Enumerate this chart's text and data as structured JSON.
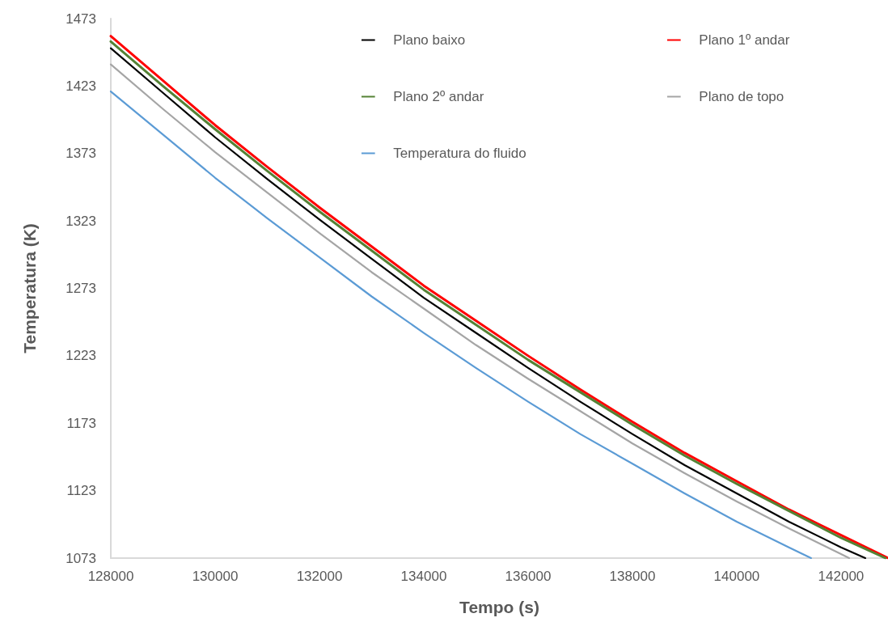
{
  "chart_data": {
    "type": "line",
    "xlabel": "Tempo (s)",
    "ylabel": "Temperatura (K)",
    "xlim": [
      128000,
      142900
    ],
    "xticks": [
      128000,
      130000,
      132000,
      134000,
      136000,
      138000,
      140000,
      142000
    ],
    "ylim": [
      1073,
      1473
    ],
    "yticks": [
      1073,
      1123,
      1173,
      1223,
      1273,
      1323,
      1373,
      1423,
      1473
    ],
    "grid": false,
    "legend": "top right",
    "marker": "none",
    "line_style": "solid",
    "series": [
      {
        "name": "Plano baixo",
        "color": "#000000",
        "x": [
          128000,
          129000,
          130000,
          131000,
          132000,
          133000,
          134000,
          135000,
          136000,
          137000,
          138000,
          139000,
          140000,
          141000,
          142000,
          142465
        ],
        "values": [
          1451,
          1418,
          1385,
          1354,
          1324,
          1295,
          1266,
          1240,
          1214,
          1189,
          1165,
          1142,
          1121,
          1100,
          1081,
          1073
        ]
      },
      {
        "name": "Plano 1º andar",
        "color": "#ff0000",
        "x": [
          128000,
          129000,
          130000,
          131000,
          132000,
          133000,
          134000,
          135000,
          136000,
          137000,
          138000,
          139000,
          140000,
          141000,
          142000,
          142900
        ],
        "values": [
          1460,
          1427,
          1394,
          1363,
          1333,
          1304,
          1275,
          1249,
          1223,
          1198,
          1174,
          1151,
          1130,
          1109,
          1090,
          1073
        ]
      },
      {
        "name": "Plano 2º andar",
        "color": "#548235",
        "x": [
          128000,
          129000,
          130000,
          131000,
          132000,
          133000,
          134000,
          135000,
          136000,
          137000,
          138000,
          139000,
          140000,
          141000,
          142000,
          142850
        ],
        "values": [
          1456,
          1423,
          1391,
          1360,
          1330,
          1301,
          1272,
          1246,
          1220,
          1196,
          1172,
          1149,
          1128,
          1108,
          1088,
          1073
        ]
      },
      {
        "name": "Plano de topo",
        "color": "#a5a5a5",
        "x": [
          128000,
          129000,
          130000,
          131000,
          132000,
          133000,
          134000,
          135000,
          136000,
          137000,
          138000,
          139000,
          140000,
          141000,
          142000,
          142155
        ],
        "values": [
          1439,
          1406,
          1374,
          1344,
          1314,
          1285,
          1258,
          1231,
          1206,
          1182,
          1158,
          1136,
          1115,
          1095,
          1076,
          1073
        ]
      },
      {
        "name": "Temperatura do fluido",
        "color": "#5b9bd5",
        "x": [
          128000,
          129000,
          130000,
          131000,
          132000,
          133000,
          134000,
          135000,
          136000,
          137000,
          138000,
          139000,
          140000,
          141000,
          141425
        ],
        "values": [
          1419,
          1387,
          1355,
          1325,
          1296,
          1267,
          1240,
          1214,
          1189,
          1165,
          1143,
          1121,
          1100,
          1081,
          1073
        ]
      }
    ]
  }
}
